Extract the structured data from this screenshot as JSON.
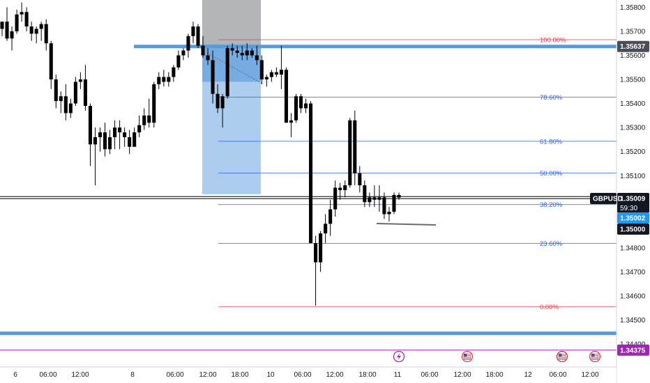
{
  "symbol": "GBPUSD",
  "countdown": "59:30",
  "colors": {
    "background": "#ffffff",
    "candle": "#000000",
    "fib_line": "#2962ff",
    "fib_edge": "#f23645",
    "level_blue": "#5b9bd5",
    "zone_blue": "#4a90d9",
    "zone_gray": "#a6a7ab",
    "purple": "#9c27b0",
    "badge_dark": "#131722",
    "badge_blue": "#2196f3"
  },
  "price_badges": [
    {
      "label": "1.35637",
      "price": 1.35637,
      "style": "gray"
    },
    {
      "label": "1.35009",
      "price": 1.35009,
      "style": "dark"
    },
    {
      "label": "1.35002",
      "price": 1.35002,
      "style": "blue"
    },
    {
      "label": "1.35000",
      "price": 1.35,
      "style": "dark"
    },
    {
      "label": "1.34375",
      "price": 1.34375,
      "style": "purple"
    }
  ],
  "levels": {
    "upper_blue": 1.35637,
    "lower_blue": 1.34445,
    "purple": 1.34375,
    "current": 1.35009
  },
  "fib_levels": [
    {
      "label": "100.00%",
      "price": 1.35665,
      "edge": true
    },
    {
      "label": "78.60%",
      "price": 1.35426,
      "edge": false
    },
    {
      "label": "61.80%",
      "price": 1.35243,
      "edge": false
    },
    {
      "label": "50.00%",
      "price": 1.35111,
      "edge": false
    },
    {
      "label": "38.20%",
      "price": 1.3498,
      "edge": false
    },
    {
      "label": "23.60%",
      "price": 1.34819,
      "edge": false
    },
    {
      "label": "0.00%",
      "price": 1.34556,
      "edge": true
    }
  ],
  "events": [
    {
      "kind": "flash",
      "time_label": "11"
    },
    {
      "kind": "us-flag",
      "time_label": "12:00"
    },
    {
      "kind": "us-flag-red",
      "time_label": "06:00"
    },
    {
      "kind": "us-flag",
      "time_label": "12:00"
    }
  ],
  "chart_data": {
    "type": "candlestick",
    "title": "",
    "xlabel": "",
    "ylabel": "",
    "ylim": [
      1.34305,
      1.3583
    ],
    "y_ticks": [
      "1.35800",
      "1.35700",
      "1.35600",
      "1.35500",
      "1.35400",
      "1.35300",
      "1.35200",
      "1.35100",
      "1.34900",
      "1.34800",
      "1.34700",
      "1.34600",
      "1.34500",
      "1.34400"
    ],
    "x_ticks": [
      "6",
      "06:00",
      "12:00",
      "8",
      "06:00",
      "12:00",
      "18:00",
      "10",
      "06:00",
      "12:00",
      "18:00",
      "11",
      "06:00",
      "12:00",
      "18:00",
      "12",
      "06:00",
      "12:00"
    ],
    "grid": false,
    "series": [
      {
        "values": [
          [
            1.3571,
            1.3574,
            1.3568,
            1.3574
          ],
          [
            1.3574,
            1.358,
            1.3566,
            1.3567
          ],
          [
            1.3567,
            1.3572,
            1.3562,
            1.357
          ],
          [
            1.357,
            1.3579,
            1.3569,
            1.3577
          ],
          [
            1.3577,
            1.3582,
            1.3574,
            1.3578
          ],
          [
            1.3578,
            1.358,
            1.357,
            1.3572
          ],
          [
            1.3572,
            1.3574,
            1.3566,
            1.3569
          ],
          [
            1.3569,
            1.3572,
            1.3565,
            1.3571
          ],
          [
            1.3571,
            1.3574,
            1.3566,
            1.3573
          ],
          [
            1.3573,
            1.3575,
            1.3562,
            1.3565
          ],
          [
            1.3565,
            1.3566,
            1.3546,
            1.355
          ],
          [
            1.355,
            1.3552,
            1.3538,
            1.3541
          ],
          [
            1.3541,
            1.3545,
            1.3536,
            1.3543
          ],
          [
            1.3543,
            1.3548,
            1.3533,
            1.3536
          ],
          [
            1.3536,
            1.3542,
            1.3534,
            1.354
          ],
          [
            1.354,
            1.3551,
            1.3539,
            1.3549
          ],
          [
            1.3549,
            1.3553,
            1.3546,
            1.355
          ],
          [
            1.355,
            1.3556,
            1.3537,
            1.3539
          ],
          [
            1.3539,
            1.354,
            1.3514,
            1.3523
          ],
          [
            1.3523,
            1.353,
            1.3506,
            1.3526
          ],
          [
            1.3526,
            1.353,
            1.352,
            1.3528
          ],
          [
            1.3528,
            1.3532,
            1.3518,
            1.3521
          ],
          [
            1.3521,
            1.3529,
            1.3519,
            1.3526
          ],
          [
            1.3526,
            1.3533,
            1.3521,
            1.353
          ],
          [
            1.353,
            1.3533,
            1.3521,
            1.3528
          ],
          [
            1.3528,
            1.353,
            1.3522,
            1.3526
          ],
          [
            1.3526,
            1.3529,
            1.3519,
            1.3522
          ],
          [
            1.3522,
            1.353,
            1.3522,
            1.3528
          ],
          [
            1.3528,
            1.3535,
            1.3526,
            1.3531
          ],
          [
            1.3531,
            1.3538,
            1.3529,
            1.3535
          ],
          [
            1.3535,
            1.3542,
            1.353,
            1.3532
          ],
          [
            1.3532,
            1.3549,
            1.353,
            1.3548
          ],
          [
            1.3548,
            1.3553,
            1.3546,
            1.3551
          ],
          [
            1.3551,
            1.3554,
            1.3547,
            1.3549
          ],
          [
            1.3549,
            1.3553,
            1.3547,
            1.3551
          ],
          [
            1.3551,
            1.3556,
            1.3549,
            1.3555
          ],
          [
            1.3555,
            1.3562,
            1.3554,
            1.356
          ],
          [
            1.356,
            1.3563,
            1.3558,
            1.3562
          ],
          [
            1.3562,
            1.3569,
            1.3559,
            1.3568
          ],
          [
            1.3568,
            1.3574,
            1.3565,
            1.3572
          ],
          [
            1.3572,
            1.3573,
            1.3563,
            1.3564
          ],
          [
            1.3564,
            1.3568,
            1.3559,
            1.356
          ],
          [
            1.356,
            1.3563,
            1.3556,
            1.3558
          ],
          [
            1.3558,
            1.3562,
            1.354,
            1.3544
          ],
          [
            1.3544,
            1.3548,
            1.3536,
            1.3538
          ],
          [
            1.3538,
            1.3544,
            1.353,
            1.3543
          ],
          [
            1.3543,
            1.3564,
            1.3542,
            1.3563
          ],
          [
            1.3563,
            1.3565,
            1.356,
            1.3562
          ],
          [
            1.3562,
            1.3564,
            1.3559,
            1.3561
          ],
          [
            1.3561,
            1.3564,
            1.3558,
            1.356
          ],
          [
            1.356,
            1.3565,
            1.3558,
            1.3562
          ],
          [
            1.3562,
            1.3563,
            1.3559,
            1.356
          ],
          [
            1.356,
            1.3564,
            1.3556,
            1.3558
          ],
          [
            1.3558,
            1.356,
            1.3548,
            1.355
          ],
          [
            1.355,
            1.3552,
            1.3547,
            1.3551
          ],
          [
            1.3551,
            1.3554,
            1.3549,
            1.3553
          ],
          [
            1.3553,
            1.3555,
            1.3551,
            1.3552
          ],
          [
            1.3552,
            1.3564,
            1.3546,
            1.3554
          ],
          [
            1.3554,
            1.3555,
            1.3533,
            1.3532
          ],
          [
            1.3532,
            1.3536,
            1.3526,
            1.3533
          ],
          [
            1.3533,
            1.3544,
            1.3532,
            1.3543
          ],
          [
            1.3543,
            1.3544,
            1.3536,
            1.3538
          ],
          [
            1.3538,
            1.3542,
            1.3536,
            1.354
          ],
          [
            1.354,
            1.3541,
            1.3517,
            1.3482
          ],
          [
            1.3482,
            1.3485,
            1.3456,
            1.3474
          ],
          [
            1.3474,
            1.3487,
            1.347,
            1.3486
          ],
          [
            1.3486,
            1.3494,
            1.3482,
            1.349
          ],
          [
            1.349,
            1.35,
            1.3485,
            1.3496
          ],
          [
            1.3496,
            1.3508,
            1.3493,
            1.3505
          ],
          [
            1.3505,
            1.3507,
            1.35,
            1.3504
          ],
          [
            1.3504,
            1.3508,
            1.3501,
            1.3506
          ],
          [
            1.3506,
            1.3534,
            1.3505,
            1.3533
          ],
          [
            1.3533,
            1.3537,
            1.3506,
            1.3511
          ],
          [
            1.3511,
            1.3514,
            1.3503,
            1.3506
          ],
          [
            1.3506,
            1.3508,
            1.3497,
            1.3499
          ],
          [
            1.3499,
            1.3503,
            1.3497,
            1.3501
          ],
          [
            1.3501,
            1.3506,
            1.3497,
            1.35
          ],
          [
            1.35,
            1.3506,
            1.3495,
            1.3501
          ],
          [
            1.3501,
            1.3503,
            1.3492,
            1.3494
          ],
          [
            1.3494,
            1.3497,
            1.3491,
            1.3495
          ],
          [
            1.3495,
            1.3503,
            1.3494,
            1.3502
          ],
          [
            1.3502,
            1.3503,
            1.35,
            1.35009
          ]
        ]
      }
    ]
  }
}
